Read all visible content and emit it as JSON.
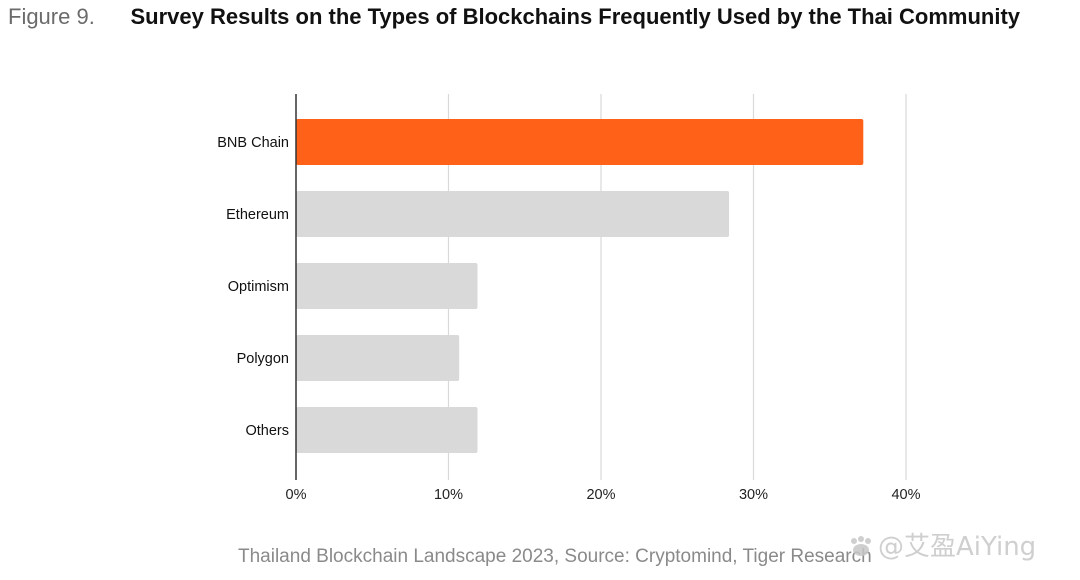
{
  "header": {
    "figure_label": "Figure 9.",
    "title": "Survey Results on the Types of Blockchains Frequently Used by the Thai Community"
  },
  "chart_data": {
    "type": "bar",
    "orientation": "horizontal",
    "categories": [
      "BNB Chain",
      "Ethereum",
      "Optimism",
      "Polygon",
      "Others"
    ],
    "values": [
      37.2,
      28.4,
      11.9,
      10.7,
      11.9
    ],
    "unit": "%",
    "xlim": [
      0,
      40
    ],
    "xticks": [
      0,
      10,
      20,
      30,
      40
    ],
    "xtick_labels": [
      "0%",
      "10%",
      "20%",
      "30%",
      "40%"
    ],
    "grid": true,
    "colors": {
      "highlight": "#ff6119",
      "default": "#d9d9d9",
      "grid": "#d9d9d9",
      "axis": "#333333"
    },
    "highlight_index": 0
  },
  "footer": {
    "source": "Thailand Blockchain Landscape 2023, Source: Cryptomind, Tiger Research"
  },
  "watermark": {
    "text": "@艾盈AiYing"
  }
}
